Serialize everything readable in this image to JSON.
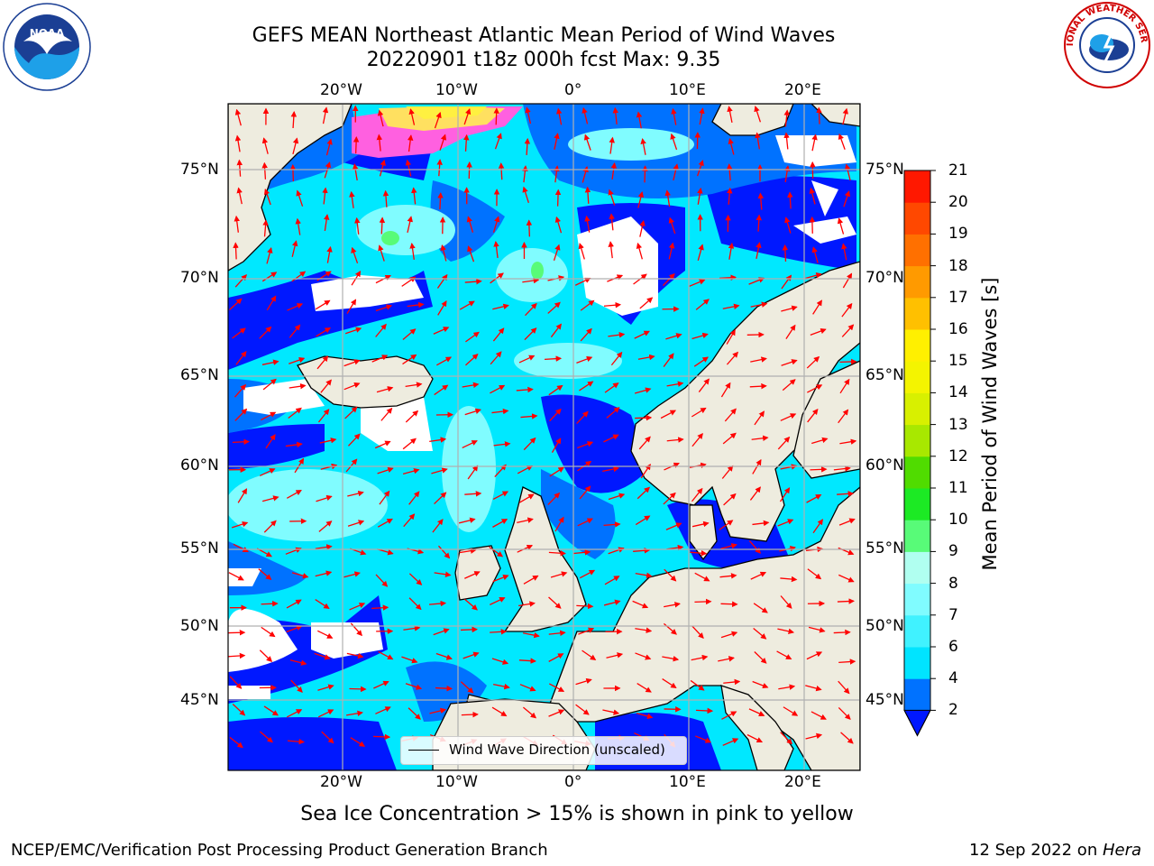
{
  "header": {
    "title_line1": "GEFS MEAN Northeast Atlantic Mean Period of Wind Waves",
    "title_line2": "20220901 t18z 000h fcst   Max: 9.35"
  },
  "logos": {
    "left": {
      "icon": "noaa-logo",
      "text": "NOAA"
    },
    "right": {
      "icon": "national-weather-service-logo",
      "text": "NATIONAL WEATHER SERVICE"
    }
  },
  "map": {
    "lon_labels": [
      "20°W",
      "10°W",
      "0°",
      "10°E",
      "20°E"
    ],
    "lat_labels": [
      "75°N",
      "70°N",
      "65°N",
      "60°N",
      "55°N",
      "50°N",
      "45°N"
    ],
    "legend_label": "Wind Wave Direction (unscaled)",
    "colors": {
      "land": "#eeecdf",
      "coast": "#000000",
      "arrows": "#ff0000",
      "grid": "#b0b0b0"
    }
  },
  "colorbar": {
    "label": "Mean Period of Wind Waves [s]",
    "ticks": [
      "2",
      "4",
      "6",
      "7",
      "8",
      "9",
      "10",
      "11",
      "12",
      "13",
      "14",
      "15",
      "16",
      "17",
      "18",
      "19",
      "20",
      "21"
    ],
    "colors": [
      "#0072ff",
      "#00e4ff",
      "#40f2ff",
      "#80fcff",
      "#b0fff0",
      "#58fb78",
      "#1cea24",
      "#50dc00",
      "#a8e800",
      "#d8f000",
      "#f4f400",
      "#fff000",
      "#ffc000",
      "#ff9a00",
      "#ff7000",
      "#ff4800",
      "#ff1800"
    ],
    "under_color": "#0018ff"
  },
  "captions": {
    "sea_ice_note": "Sea Ice Concentration > 15% is shown in pink to yellow",
    "credit": "NCEP/EMC/Verification Post Processing Product Generation Branch",
    "date_prefix": "12 Sep 2022 on ",
    "machine": "Hera"
  }
}
